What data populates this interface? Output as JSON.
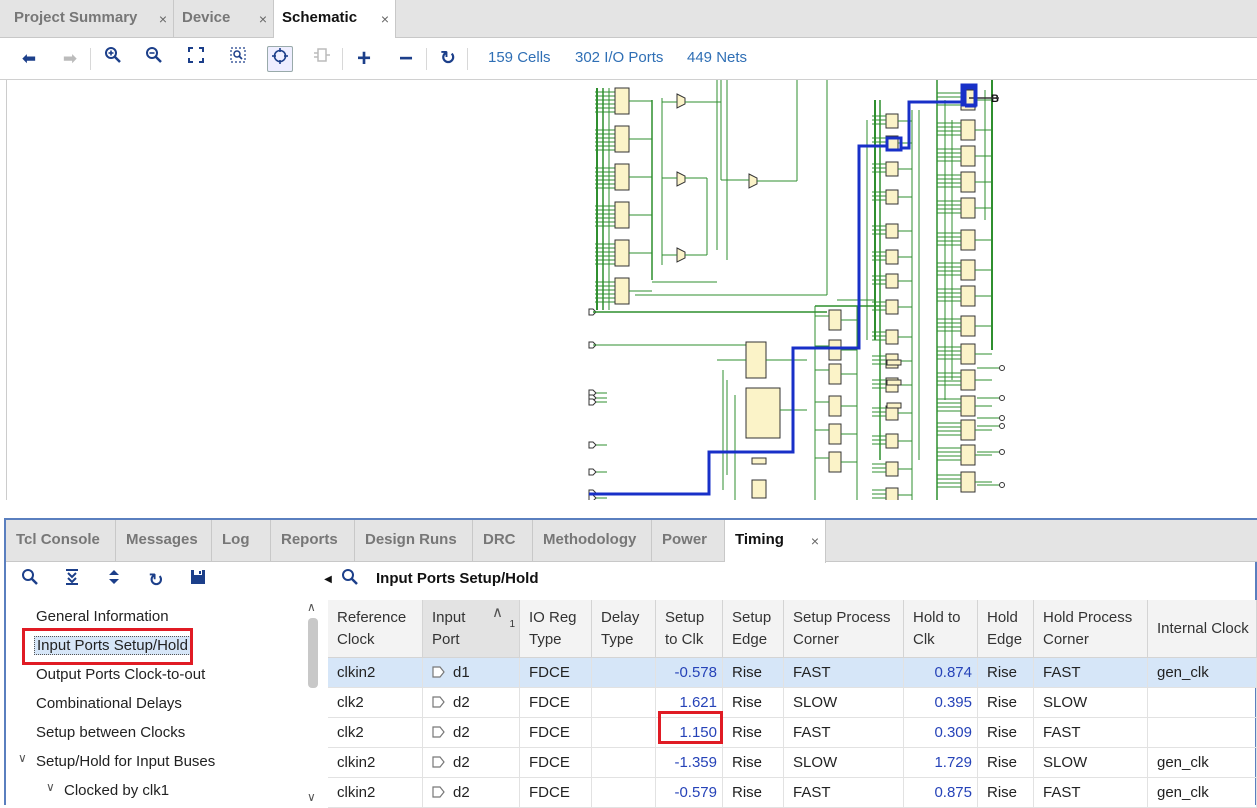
{
  "top_tabs": [
    {
      "label": "Project Summary"
    },
    {
      "label": "Device"
    },
    {
      "label": "Schematic"
    }
  ],
  "toolbar": {
    "cells": "159 Cells",
    "io_ports": "302 I/O Ports",
    "nets": "449 Nets",
    "icons": [
      "back-icon",
      "forward-icon",
      "zoom-in-icon",
      "zoom-out-icon",
      "zoom-fit-icon",
      "zoom-area-icon",
      "select-icon",
      "regenerate-icon",
      "add-icon",
      "remove-icon",
      "refresh-icon"
    ]
  },
  "bottom_tabs": [
    {
      "label": "Tcl Console"
    },
    {
      "label": "Messages"
    },
    {
      "label": "Log"
    },
    {
      "label": "Reports"
    },
    {
      "label": "Design Runs"
    },
    {
      "label": "DRC"
    },
    {
      "label": "Methodology"
    },
    {
      "label": "Power"
    },
    {
      "label": "Timing"
    }
  ],
  "panel": {
    "title": "Input Ports Setup/Hold"
  },
  "tree": [
    {
      "label": "General Information"
    },
    {
      "label": "Input Ports Setup/Hold"
    },
    {
      "label": "Output Ports Clock-to-out"
    },
    {
      "label": "Combinational Delays"
    },
    {
      "label": "Setup between Clocks"
    },
    {
      "label": "Setup/Hold for Input Buses"
    },
    {
      "label": "Clocked by clk1"
    }
  ],
  "table": {
    "headers": [
      [
        "Reference",
        "Clock"
      ],
      [
        "Input",
        "Port"
      ],
      [
        "IO Reg",
        "Type"
      ],
      [
        "Delay",
        "Type"
      ],
      [
        "Setup",
        "to Clk"
      ],
      [
        "Setup",
        "Edge"
      ],
      [
        "Setup Process",
        "Corner"
      ],
      [
        "Hold to",
        "Clk"
      ],
      [
        "Hold",
        "Edge"
      ],
      [
        "Hold Process",
        "Corner"
      ],
      [
        "Internal Clock",
        ""
      ]
    ],
    "sort_index": "1",
    "rows": [
      [
        "clkin2",
        "d1",
        "FDCE",
        "",
        "-0.578",
        "Rise",
        "FAST",
        "0.874",
        "Rise",
        "FAST",
        "gen_clk"
      ],
      [
        "clk2",
        "d2",
        "FDCE",
        "",
        "1.621",
        "Rise",
        "SLOW",
        "0.395",
        "Rise",
        "SLOW",
        ""
      ],
      [
        "clk2",
        "d2",
        "FDCE",
        "",
        "1.150",
        "Rise",
        "FAST",
        "0.309",
        "Rise",
        "FAST",
        ""
      ],
      [
        "clkin2",
        "d2",
        "FDCE",
        "",
        "-1.359",
        "Rise",
        "SLOW",
        "1.729",
        "Rise",
        "SLOW",
        "gen_clk"
      ],
      [
        "clkin2",
        "d2",
        "FDCE",
        "",
        "-0.579",
        "Rise",
        "FAST",
        "0.875",
        "Rise",
        "FAST",
        "gen_clk"
      ]
    ]
  },
  "colors": {
    "highlight_box": "#e01b24",
    "net_green": "#2f8f2f",
    "net_blue": "#1830c8",
    "cell_fill": "#fbf3c8",
    "selected_row": "#d6e6f8",
    "value_blue": "#2643b8"
  }
}
